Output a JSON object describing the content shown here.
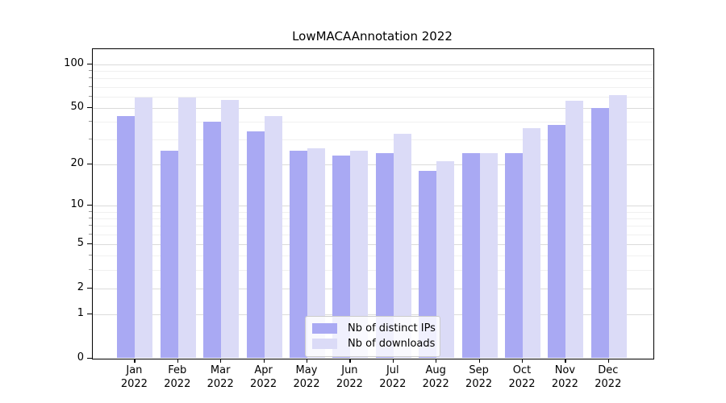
{
  "chart_data": {
    "type": "bar",
    "title": "LowMACAAnnotation 2022",
    "scale": "log1p",
    "ylim": [
      0,
      127
    ],
    "grid": true,
    "legend_position": "bottom-center",
    "categories": [
      "Jan",
      "Feb",
      "Mar",
      "Apr",
      "May",
      "Jun",
      "Jul",
      "Aug",
      "Sep",
      "Oct",
      "Nov",
      "Dec"
    ],
    "category_year": "2022",
    "series": [
      {
        "name": "Nb of distinct IPs",
        "color": "#a9a9f3",
        "values": [
          44,
          25,
          40,
          34,
          25,
          23,
          24,
          18,
          24,
          24,
          38,
          50
        ]
      },
      {
        "name": "Nb of downloads",
        "color": "#dbdbf7",
        "values": [
          59,
          59,
          57,
          44,
          26,
          25,
          33,
          21,
          24,
          36,
          56,
          61
        ]
      }
    ],
    "yticks_major": [
      0,
      1,
      2,
      5,
      10,
      20,
      50,
      100
    ],
    "yticks_minor": [
      3,
      4,
      6,
      7,
      8,
      9,
      30,
      40,
      60,
      70,
      80,
      90
    ]
  },
  "colors": {
    "grid_major": "#dbdbdb",
    "grid_minor": "#f0f0f0",
    "axis": "#000000"
  }
}
